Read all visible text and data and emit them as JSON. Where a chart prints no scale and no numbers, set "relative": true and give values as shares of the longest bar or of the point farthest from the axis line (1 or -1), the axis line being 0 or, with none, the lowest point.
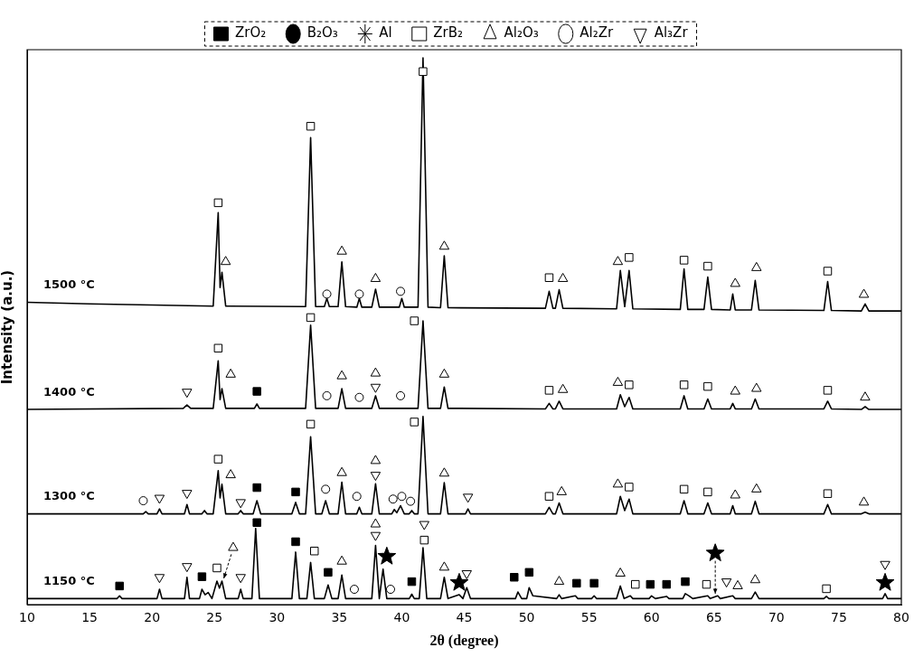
{
  "chart_data": {
    "type": "line",
    "relative": true,
    "xlabel": "2θ (degree)",
    "ylabel": "Intensity (a.u.)",
    "xlim": [
      10,
      80
    ],
    "xticks": [
      10,
      15,
      20,
      25,
      30,
      35,
      40,
      45,
      50,
      55,
      60,
      65,
      70,
      75,
      80
    ],
    "grid": false,
    "legend": "top",
    "series": [
      {
        "name": "1500 °C",
        "color": "#000000",
        "marker": "none",
        "x": [
          10,
          15,
          20,
          24.9,
          25.3,
          25.45,
          25.6,
          25.9,
          32.3,
          32.7,
          33.1,
          33.8,
          34.0,
          34.2,
          34.9,
          35.2,
          35.5,
          36.4,
          36.6,
          36.8,
          37.6,
          37.9,
          38.2,
          39.8,
          40.0,
          40.2,
          41.3,
          41.7,
          42.1,
          43.1,
          43.4,
          43.7,
          51.5,
          51.8,
          52.1,
          52.3,
          52.6,
          52.9,
          57.2,
          57.5,
          57.85,
          58.2,
          58.5,
          62.3,
          62.6,
          62.9,
          64.2,
          64.5,
          64.8,
          66.3,
          66.5,
          66.7,
          68.0,
          68.3,
          68.6,
          73.8,
          74.1,
          74.4,
          76.8,
          77.1,
          77.4,
          80
        ],
        "values": [
          0.553,
          0.55,
          0.548,
          0.546,
          0.717,
          0.58,
          0.608,
          0.546,
          0.545,
          0.854,
          0.545,
          0.545,
          0.56,
          0.545,
          0.545,
          0.627,
          0.545,
          0.544,
          0.56,
          0.544,
          0.544,
          0.577,
          0.544,
          0.544,
          0.56,
          0.544,
          0.544,
          1.0,
          0.544,
          0.543,
          0.638,
          0.543,
          0.542,
          0.573,
          0.542,
          0.542,
          0.576,
          0.542,
          0.541,
          0.611,
          0.545,
          0.611,
          0.541,
          0.54,
          0.614,
          0.54,
          0.54,
          0.599,
          0.54,
          0.539,
          0.568,
          0.539,
          0.539,
          0.593,
          0.539,
          0.538,
          0.591,
          0.538,
          0.537,
          0.55,
          0.537,
          0.537
        ]
      },
      {
        "name": "1400 °C",
        "color": "#000000",
        "marker": "none",
        "x": [
          10,
          22.5,
          22.8,
          23.1,
          24.9,
          25.3,
          25.45,
          25.6,
          25.9,
          28.2,
          28.4,
          28.6,
          32.3,
          32.7,
          33.1,
          34.9,
          35.2,
          35.5,
          37.6,
          37.9,
          38.2,
          41.3,
          41.7,
          42.1,
          43.1,
          43.4,
          43.7,
          51.5,
          51.8,
          52.1,
          52.3,
          52.6,
          52.9,
          57.2,
          57.5,
          57.85,
          58.2,
          58.5,
          62.3,
          62.6,
          62.9,
          64.2,
          64.5,
          64.8,
          66.3,
          66.5,
          66.7,
          68.0,
          68.3,
          68.6,
          73.8,
          74.1,
          74.4,
          76.8,
          77.1,
          77.4,
          80
        ],
        "values": [
          0.357,
          0.359,
          0.365,
          0.359,
          0.359,
          0.446,
          0.375,
          0.395,
          0.359,
          0.359,
          0.367,
          0.359,
          0.359,
          0.511,
          0.359,
          0.359,
          0.395,
          0.359,
          0.359,
          0.382,
          0.359,
          0.359,
          0.519,
          0.359,
          0.359,
          0.398,
          0.359,
          0.358,
          0.368,
          0.358,
          0.358,
          0.372,
          0.358,
          0.358,
          0.384,
          0.362,
          0.379,
          0.358,
          0.358,
          0.382,
          0.358,
          0.358,
          0.376,
          0.358,
          0.358,
          0.368,
          0.358,
          0.358,
          0.376,
          0.358,
          0.358,
          0.372,
          0.358,
          0.357,
          0.362,
          0.357,
          0.357
        ]
      },
      {
        "name": "1300 °C",
        "color": "#000000",
        "marker": "none",
        "x": [
          10,
          19.3,
          19.5,
          19.7,
          20.4,
          20.6,
          20.8,
          22.6,
          22.8,
          23.0,
          24.0,
          24.2,
          24.4,
          24.9,
          25.3,
          25.45,
          25.6,
          25.9,
          26.9,
          27.1,
          27.3,
          28.1,
          28.4,
          28.7,
          31.2,
          31.5,
          31.8,
          32.3,
          32.7,
          33.1,
          33.6,
          33.9,
          34.2,
          34.9,
          35.2,
          35.5,
          36.4,
          36.6,
          36.8,
          37.6,
          37.9,
          38.2,
          39.2,
          39.4,
          39.6,
          39.9,
          40.2,
          40.6,
          40.8,
          41.0,
          41.3,
          41.7,
          42.1,
          43.1,
          43.4,
          43.7,
          45.1,
          45.3,
          45.5,
          51.5,
          51.8,
          52.1,
          52.3,
          52.6,
          52.9,
          57.2,
          57.5,
          57.85,
          58.2,
          58.5,
          62.3,
          62.6,
          62.9,
          64.2,
          64.5,
          64.8,
          66.3,
          66.5,
          66.7,
          68.0,
          68.3,
          68.6,
          73.8,
          74.1,
          74.4,
          76.8,
          77.1,
          77.4,
          80
        ],
        "values": [
          0.166,
          0.166,
          0.17,
          0.166,
          0.166,
          0.175,
          0.166,
          0.166,
          0.183,
          0.166,
          0.166,
          0.172,
          0.166,
          0.166,
          0.245,
          0.195,
          0.22,
          0.166,
          0.166,
          0.172,
          0.166,
          0.166,
          0.19,
          0.166,
          0.166,
          0.187,
          0.166,
          0.166,
          0.307,
          0.166,
          0.166,
          0.19,
          0.166,
          0.166,
          0.224,
          0.166,
          0.166,
          0.178,
          0.166,
          0.166,
          0.221,
          0.166,
          0.166,
          0.174,
          0.168,
          0.181,
          0.166,
          0.166,
          0.172,
          0.166,
          0.166,
          0.344,
          0.166,
          0.166,
          0.223,
          0.166,
          0.166,
          0.175,
          0.166,
          0.166,
          0.178,
          0.166,
          0.166,
          0.186,
          0.166,
          0.166,
          0.198,
          0.172,
          0.193,
          0.166,
          0.166,
          0.19,
          0.166,
          0.166,
          0.186,
          0.166,
          0.166,
          0.181,
          0.166,
          0.166,
          0.189,
          0.166,
          0.166,
          0.183,
          0.166,
          0.166,
          0.169,
          0.166,
          0.166
        ]
      },
      {
        "name": "1150 °C",
        "color": "#000000",
        "marker": "none",
        "x": [
          10,
          17.2,
          17.4,
          17.6,
          20.4,
          20.6,
          20.8,
          22.6,
          22.8,
          23.0,
          23.8,
          24.0,
          24.25,
          24.5,
          24.8,
          25.2,
          25.4,
          25.6,
          25.9,
          26.9,
          27.1,
          27.3,
          28.0,
          28.3,
          28.6,
          31.2,
          31.5,
          31.8,
          32.4,
          32.7,
          33.0,
          33.8,
          34.1,
          34.4,
          34.9,
          35.2,
          35.5,
          37.6,
          37.9,
          38.2,
          38.5,
          38.8,
          40.6,
          40.8,
          41.0,
          41.4,
          41.7,
          42.0,
          43.1,
          43.4,
          43.7,
          44.6,
          44.9,
          45.2,
          45.5,
          49.1,
          49.3,
          49.6,
          50.0,
          50.2,
          50.5,
          52.4,
          52.6,
          52.8,
          53.9,
          54.1,
          55.2,
          55.4,
          55.6,
          57.2,
          57.5,
          57.8,
          58.3,
          58.5,
          59.8,
          60.0,
          60.3,
          61.2,
          61.4,
          62.5,
          62.7,
          63.0,
          63.3,
          64.5,
          64.7,
          65.3,
          65.5,
          66.5,
          66.7,
          68.0,
          68.3,
          68.6,
          73.8,
          74.0,
          74.2,
          78.5,
          78.7,
          78.9,
          80
        ],
        "values": [
          0.011,
          0.011,
          0.016,
          0.011,
          0.011,
          0.028,
          0.011,
          0.011,
          0.05,
          0.011,
          0.011,
          0.028,
          0.018,
          0.022,
          0.011,
          0.043,
          0.03,
          0.043,
          0.011,
          0.011,
          0.028,
          0.011,
          0.011,
          0.139,
          0.011,
          0.011,
          0.096,
          0.011,
          0.011,
          0.077,
          0.011,
          0.011,
          0.036,
          0.011,
          0.011,
          0.054,
          0.011,
          0.011,
          0.108,
          0.011,
          0.065,
          0.011,
          0.011,
          0.019,
          0.011,
          0.011,
          0.104,
          0.011,
          0.011,
          0.05,
          0.011,
          0.018,
          0.011,
          0.031,
          0.011,
          0.011,
          0.023,
          0.011,
          0.011,
          0.031,
          0.016,
          0.011,
          0.018,
          0.011,
          0.016,
          0.011,
          0.011,
          0.016,
          0.011,
          0.011,
          0.034,
          0.011,
          0.016,
          0.011,
          0.011,
          0.016,
          0.011,
          0.015,
          0.011,
          0.011,
          0.02,
          0.016,
          0.011,
          0.016,
          0.011,
          0.016,
          0.011,
          0.016,
          0.011,
          0.011,
          0.023,
          0.011,
          0.011,
          0.015,
          0.011,
          0.011,
          0.02,
          0.011,
          0.011
        ]
      },
      {
        "name": "ZrO₂",
        "type": "scatter",
        "color": "#000000",
        "marker": "square",
        "x": [
          28.4,
          28.4,
          31.5,
          17.4,
          24.0,
          28.4,
          31.5,
          34.1,
          40.8,
          49.0,
          50.2,
          54.0,
          55.4,
          59.9,
          61.2,
          62.7
        ],
        "values": [
          0.39,
          0.214,
          0.206,
          0.034,
          0.051,
          0.15,
          0.115,
          0.059,
          0.042,
          0.05,
          0.059,
          0.039,
          0.039,
          0.037,
          0.037,
          0.042
        ]
      },
      {
        "name": "B₂O₃",
        "type": "scatter",
        "color": "#000000",
        "marker": "circle"
      },
      {
        "name": "Al",
        "type": "scatter",
        "color": "#000000",
        "marker": "star",
        "x": [
          38.8,
          44.6,
          65.1,
          78.7
        ],
        "values": [
          0.088,
          0.04,
          0.094,
          0.04
        ]
      },
      {
        "name": "ZrB₂",
        "type": "scatter",
        "color": "#000000",
        "marker": "square-open",
        "x": [
          25.3,
          32.7,
          41.7,
          51.8,
          58.2,
          62.6,
          64.5,
          74.1,
          25.3,
          32.7,
          41.0,
          51.8,
          58.2,
          62.6,
          64.5,
          74.1,
          25.3,
          32.7,
          41.0,
          51.8,
          58.2,
          62.6,
          64.5,
          74.1,
          25.2,
          33.0,
          41.8,
          58.7,
          64.4,
          74.0
        ],
        "values": [
          0.735,
          0.875,
          0.975,
          0.598,
          0.635,
          0.63,
          0.619,
          0.61,
          0.469,
          0.525,
          0.519,
          0.392,
          0.402,
          0.402,
          0.399,
          0.392,
          0.266,
          0.33,
          0.334,
          0.198,
          0.215,
          0.211,
          0.206,
          0.203,
          0.067,
          0.098,
          0.118,
          0.037,
          0.037,
          0.029
        ]
      },
      {
        "name": "Al₂O₃",
        "type": "scatter",
        "color": "#000000",
        "marker": "triangle-open",
        "x": [
          25.9,
          35.2,
          37.9,
          43.4,
          52.9,
          57.3,
          66.7,
          68.4,
          77.0,
          26.3,
          35.2,
          37.9,
          43.4,
          52.9,
          57.3,
          66.7,
          68.4,
          77.1,
          26.3,
          35.2,
          37.9,
          43.4,
          52.8,
          57.3,
          66.7,
          68.4,
          77.0,
          26.5,
          35.2,
          37.9,
          43.4,
          52.6,
          57.5,
          66.9,
          68.3
        ],
        "values": [
          0.627,
          0.646,
          0.596,
          0.655,
          0.596,
          0.627,
          0.587,
          0.616,
          0.567,
          0.421,
          0.418,
          0.423,
          0.421,
          0.393,
          0.406,
          0.39,
          0.395,
          0.379,
          0.237,
          0.241,
          0.263,
          0.24,
          0.206,
          0.22,
          0.2,
          0.211,
          0.187,
          0.104,
          0.079,
          0.147,
          0.068,
          0.042,
          0.057,
          0.034,
          0.045
        ]
      },
      {
        "name": "Al₂Zr",
        "type": "scatter",
        "color": "#000000",
        "marker": "circle-open",
        "x": [
          34.0,
          36.6,
          39.9,
          34.0,
          36.6,
          39.9,
          19.3,
          33.9,
          36.4,
          39.3,
          40.0,
          40.7,
          36.2,
          39.1
        ],
        "values": [
          0.568,
          0.568,
          0.573,
          0.382,
          0.379,
          0.382,
          0.19,
          0.211,
          0.198,
          0.193,
          0.198,
          0.189,
          0.028,
          0.028
        ]
      },
      {
        "name": "Al₃Zr",
        "type": "scatter",
        "color": "#000000",
        "marker": "triangle-down-open",
        "x": [
          22.8,
          37.9,
          20.6,
          22.8,
          27.1,
          37.9,
          45.3,
          20.6,
          22.8,
          27.1,
          37.9,
          41.8,
          45.2,
          66.0,
          78.7
        ],
        "values": [
          0.389,
          0.398,
          0.195,
          0.204,
          0.187,
          0.237,
          0.197,
          0.05,
          0.07,
          0.05,
          0.127,
          0.147,
          0.057,
          0.042,
          0.074
        ]
      }
    ]
  }
}
